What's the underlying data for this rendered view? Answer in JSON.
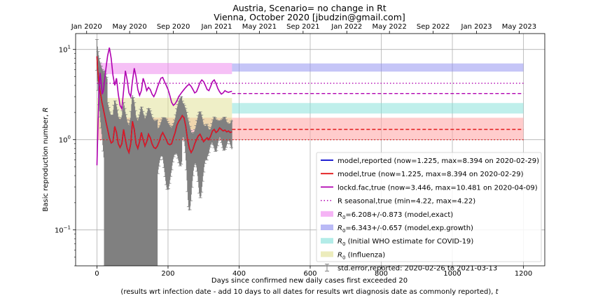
{
  "chart_data": {
    "type": "line",
    "title": "Austria, Scenario= no change in Rt",
    "subtitle": "Vienna, October 2020 [jbudzin@gmail.com]",
    "xlabel": "Days since confirmed new daily cases first exceeded 20",
    "xlabel2_prefix": "(results wrt infection date - add 10 days to all dates for results wrt diagnosis date as commonly reported), ",
    "xlabel2_var": "t",
    "ylabel_prefix": "Basic reproduction number, ",
    "ylabel_var": "R",
    "x_scale": "linear",
    "y_scale": "log",
    "xlim": [
      -60,
      1260
    ],
    "ylim": [
      0.04,
      15
    ],
    "x_ticks": [
      0,
      200,
      400,
      600,
      800,
      1000,
      1200
    ],
    "x_tick_labels": [
      "0",
      "200",
      "400",
      "600",
      "800",
      "1000",
      "1200"
    ],
    "y_ticks": [
      {
        "value": 10,
        "base": "10",
        "exp": "1"
      },
      {
        "value": 1,
        "base": "10",
        "exp": "0"
      },
      {
        "value": 0.1,
        "base": "10",
        "exp": "−1"
      }
    ],
    "top_axis": {
      "ticks": [
        -29,
        92,
        215,
        337,
        457,
        580,
        703,
        823
      ],
      "labels": [
        "Jan 2020",
        "May 2020",
        "Sep 2020",
        "Jan 2021",
        "May 2021",
        "Sep 2021",
        "Jan 2022",
        "May 2022",
        "Sep 2022",
        "Jan 2023",
        "May 2023"
      ],
      "positions": [
        -29,
        92,
        215,
        337,
        457,
        580,
        703,
        823,
        946,
        1068,
        1188
      ]
    },
    "grid": true,
    "legend_position": "lower right",
    "bands": [
      {
        "label_sym": "R",
        "label_sub": "0",
        "label_rest": "=6.208+/-0.873 (model,exact)",
        "color": "#ee82ee",
        "x": [
          0,
          380
        ],
        "y": [
          5.335,
          7.081
        ]
      },
      {
        "label_sym": "R",
        "label_sub": "0",
        "label_rest": "=6.343+/-0.657 (model,exp.growth)",
        "color": "#8c8cf0",
        "x": [
          380,
          1200
        ],
        "y": [
          5.686,
          7.0
        ]
      },
      {
        "label_sym": "R",
        "label_sub": "0",
        "label_rest": " (Initial WHO estimate for COVID-19)",
        "color": "#80e0d8",
        "x": [
          380,
          1200
        ],
        "y": [
          1.95,
          2.55
        ]
      },
      {
        "label_sym": "R",
        "label_sub": "0",
        "label_rest": " (Influenza)",
        "color": "#e0e090",
        "x": [
          0,
          380
        ],
        "y": [
          1.3,
          2.9
        ]
      }
    ],
    "extra_bands": [
      {
        "color": "#ffaaaa",
        "x": [
          380,
          1200
        ],
        "y": [
          1.0,
          1.75
        ]
      },
      {
        "color": "#ffaaaa",
        "x": [
          0,
          380
        ],
        "y": [
          1.0,
          1.75
        ]
      }
    ],
    "series": [
      {
        "name": "model,reported (now=1.225, max=8.394 on 2020-02-29)",
        "color": "#0000cc",
        "style": "solid",
        "x": [
          0,
          2,
          5,
          8,
          11,
          14,
          17,
          20,
          25,
          30,
          35,
          40,
          45,
          50,
          55,
          60,
          65,
          70,
          75,
          80,
          85,
          90,
          95,
          100,
          105,
          110,
          115,
          120,
          125,
          130,
          135,
          140,
          145,
          150,
          155,
          160,
          165,
          170,
          175,
          180,
          185,
          190,
          195,
          200,
          205,
          210,
          215,
          220,
          225,
          230,
          235,
          240,
          245,
          250,
          255,
          260,
          265,
          270,
          275,
          280,
          285,
          290,
          295,
          300,
          305,
          310,
          315,
          320,
          325,
          330,
          335,
          340,
          345,
          350,
          355,
          360,
          365,
          370,
          375,
          380
        ],
        "y": [
          8.394,
          6.0,
          4.5,
          3.6,
          3.1,
          2.6,
          2.3,
          2.0,
          1.6,
          1.3,
          1.05,
          0.92,
          0.95,
          1.4,
          1.2,
          0.9,
          0.82,
          0.9,
          1.3,
          1.0,
          0.8,
          0.72,
          0.9,
          1.6,
          1.3,
          0.9,
          0.8,
          0.95,
          1.2,
          1.0,
          0.85,
          0.95,
          1.15,
          1.05,
          0.9,
          0.82,
          0.8,
          0.85,
          0.95,
          1.1,
          1.2,
          1.1,
          1.0,
          0.9,
          0.88,
          0.9,
          1.05,
          1.2,
          1.45,
          1.6,
          1.7,
          1.85,
          1.75,
          1.4,
          1.0,
          0.8,
          0.72,
          0.78,
          0.9,
          1.0,
          1.1,
          1.15,
          1.05,
          0.95,
          1.0,
          1.05,
          1.0,
          1.1,
          1.25,
          1.3,
          1.2,
          1.25,
          1.35,
          1.3,
          1.25,
          1.28,
          1.22,
          1.25,
          1.2,
          1.225
        ]
      },
      {
        "name": "model,true (now=1.225, max=8.394 on 2020-02-29)",
        "color": "#e31a1c",
        "style": "solid",
        "x": [
          0,
          2,
          5,
          8,
          11,
          14,
          17,
          20,
          25,
          30,
          35,
          40,
          45,
          50,
          55,
          60,
          65,
          70,
          75,
          80,
          85,
          90,
          95,
          100,
          105,
          110,
          115,
          120,
          125,
          130,
          135,
          140,
          145,
          150,
          155,
          160,
          165,
          170,
          175,
          180,
          185,
          190,
          195,
          200,
          205,
          210,
          215,
          220,
          225,
          230,
          235,
          240,
          245,
          250,
          255,
          260,
          265,
          270,
          275,
          280,
          285,
          290,
          295,
          300,
          305,
          310,
          315,
          320,
          325,
          330,
          335,
          340,
          345,
          350,
          355,
          360,
          365,
          370,
          375,
          380
        ],
        "y": [
          8.394,
          6.0,
          4.5,
          3.6,
          3.1,
          2.6,
          2.3,
          2.0,
          1.6,
          1.3,
          1.05,
          0.92,
          0.95,
          1.4,
          1.2,
          0.9,
          0.82,
          0.9,
          1.3,
          1.0,
          0.8,
          0.72,
          0.9,
          1.6,
          1.3,
          0.9,
          0.8,
          0.95,
          1.2,
          1.0,
          0.85,
          0.95,
          1.15,
          1.05,
          0.9,
          0.82,
          0.8,
          0.85,
          0.95,
          1.1,
          1.2,
          1.1,
          1.0,
          0.9,
          0.88,
          0.9,
          1.05,
          1.2,
          1.45,
          1.6,
          1.7,
          1.85,
          1.75,
          1.4,
          1.0,
          0.8,
          0.72,
          0.78,
          0.9,
          1.0,
          1.1,
          1.15,
          1.05,
          0.95,
          1.0,
          1.05,
          1.0,
          1.1,
          1.25,
          1.3,
          1.2,
          1.25,
          1.35,
          1.3,
          1.25,
          1.28,
          1.22,
          1.25,
          1.2,
          1.225
        ]
      },
      {
        "name": "lockd.fac,true (now=3.446, max=10.481 on 2020-04-09)",
        "color": "#b000b0",
        "style": "solid",
        "x": [
          0,
          3,
          6,
          9,
          12,
          15,
          18,
          22,
          26,
          30,
          35,
          40,
          45,
          50,
          55,
          60,
          65,
          70,
          75,
          80,
          85,
          90,
          95,
          100,
          105,
          110,
          115,
          120,
          125,
          130,
          135,
          140,
          145,
          150,
          155,
          160,
          165,
          170,
          175,
          180,
          185,
          190,
          195,
          200,
          205,
          210,
          215,
          220,
          225,
          230,
          235,
          240,
          245,
          250,
          255,
          260,
          265,
          270,
          275,
          280,
          285,
          290,
          295,
          300,
          305,
          310,
          315,
          320,
          325,
          330,
          335,
          340,
          345,
          350,
          355,
          360,
          365,
          370,
          375,
          380
        ],
        "y": [
          0.52,
          1.5,
          3.8,
          5.5,
          4.2,
          3.2,
          3.5,
          4.8,
          6.5,
          8.5,
          10.481,
          8.0,
          5.2,
          4.0,
          4.8,
          3.2,
          2.4,
          2.2,
          3.5,
          5.8,
          4.6,
          3.3,
          3.0,
          4.5,
          6.2,
          5.0,
          3.6,
          3.1,
          3.5,
          4.8,
          4.2,
          3.5,
          3.8,
          3.6,
          3.2,
          3.0,
          3.3,
          3.8,
          4.3,
          4.8,
          4.9,
          4.4,
          4.0,
          3.6,
          3.1,
          2.6,
          2.4,
          2.5,
          2.7,
          3.0,
          3.2,
          3.4,
          3.6,
          3.8,
          4.0,
          4.1,
          3.9,
          3.6,
          3.3,
          3.4,
          3.8,
          4.3,
          4.6,
          4.4,
          4.0,
          3.6,
          3.5,
          3.9,
          4.4,
          4.6,
          4.2,
          3.7,
          3.4,
          3.2,
          3.3,
          3.5,
          3.4,
          3.35,
          3.4,
          3.446
        ]
      }
    ],
    "projection_lines": [
      {
        "color": "#e31a1c",
        "style": "dashed",
        "x": [
          380,
          1200
        ],
        "y": 1.3
      },
      {
        "color": "#b000b0",
        "style": "dashed",
        "x": [
          380,
          1200
        ],
        "y": 3.25
      },
      {
        "color": "#b000b0",
        "style": "dotted",
        "x": [
          0,
          1200
        ],
        "y": 4.22
      },
      {
        "color": "#e31a1c",
        "style": "dotted",
        "x": [
          0,
          1200
        ],
        "y": 1.0
      }
    ],
    "seasonal_series": {
      "name": "R seasonal,true (min=4.22, max=4.22)",
      "color": "#b000b0",
      "style": "dotted"
    },
    "error_bars": {
      "name": "std.error,reported: 2020-02-26 to 2021-03-13",
      "color": "#808080",
      "x_start": 0,
      "x_end": 380
    }
  }
}
